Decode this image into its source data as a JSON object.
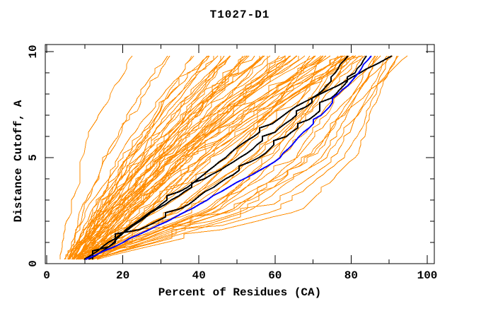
{
  "title": "T1027-D1",
  "chart_data": {
    "type": "line",
    "title": "T1027-D1",
    "xlabel": "Percent of Residues (CA)",
    "ylabel": "Distance Cutoff, A",
    "xlim": [
      0,
      102
    ],
    "ylim": [
      0,
      10.3
    ],
    "x_major_ticks": [
      0,
      20,
      40,
      60,
      80,
      100
    ],
    "x_minor_step": 10,
    "y_major_ticks": [
      0,
      5,
      10
    ],
    "y_minor_step": 1,
    "grid": false,
    "legend": null,
    "colors": {
      "orange": "#ff8c00",
      "black": "#000000",
      "blue": "#0000ff",
      "axis": "#000000",
      "background": "#ffffff"
    },
    "cutoffs": [
      0.2,
      2.5,
      5.0,
      7.5,
      9.8
    ],
    "series": [
      {
        "name": "orange-models",
        "color": "orange",
        "line_width": 1,
        "curves": [
          [
            4,
            7,
            9,
            14,
            21
          ],
          [
            5,
            10,
            15,
            22,
            30
          ],
          [
            6,
            11,
            17,
            25,
            34
          ],
          [
            5,
            12,
            19,
            28,
            37
          ],
          [
            7,
            14,
            22,
            31,
            40
          ],
          [
            6,
            13,
            21,
            30,
            42
          ],
          [
            6,
            12,
            20,
            30,
            42
          ],
          [
            8,
            15,
            24,
            33,
            43
          ],
          [
            7,
            13,
            22,
            32,
            44
          ],
          [
            9,
            17,
            26,
            35,
            45
          ],
          [
            6,
            14,
            23,
            34,
            46
          ],
          [
            10,
            18,
            28,
            37,
            47
          ],
          [
            7,
            15,
            25,
            36,
            48
          ],
          [
            8,
            16,
            27,
            38,
            49
          ],
          [
            11,
            19,
            29,
            40,
            50
          ],
          [
            6,
            13,
            24,
            37,
            51
          ],
          [
            9,
            18,
            30,
            41,
            52
          ],
          [
            7,
            16,
            28,
            40,
            53
          ],
          [
            10,
            20,
            31,
            42,
            54
          ],
          [
            8,
            17,
            29,
            42,
            55
          ],
          [
            12,
            22,
            33,
            44,
            56
          ],
          [
            6,
            15,
            27,
            41,
            57
          ],
          [
            9,
            19,
            32,
            45,
            58
          ],
          [
            7,
            17,
            30,
            44,
            59
          ],
          [
            11,
            21,
            34,
            47,
            60
          ],
          [
            8,
            18,
            31,
            46,
            61
          ],
          [
            10,
            22,
            35,
            48,
            62
          ],
          [
            6,
            16,
            29,
            45,
            63
          ],
          [
            9,
            20,
            33,
            48,
            64
          ],
          [
            12,
            24,
            37,
            51,
            65
          ],
          [
            7,
            18,
            32,
            48,
            66
          ],
          [
            10,
            23,
            36,
            51,
            67
          ],
          [
            8,
            20,
            34,
            50,
            68
          ],
          [
            11,
            25,
            39,
            54,
            69
          ],
          [
            6,
            17,
            31,
            49,
            70
          ],
          [
            9,
            22,
            36,
            53,
            71
          ],
          [
            12,
            26,
            40,
            56,
            72
          ],
          [
            7,
            19,
            33,
            52,
            73
          ],
          [
            10,
            24,
            38,
            56,
            74
          ],
          [
            8,
            21,
            36,
            55,
            75
          ],
          [
            11,
            27,
            42,
            59,
            76
          ],
          [
            6,
            18,
            33,
            53,
            77
          ],
          [
            9,
            23,
            38,
            58,
            78
          ],
          [
            12,
            28,
            44,
            62,
            79
          ],
          [
            7,
            20,
            35,
            57,
            80
          ],
          [
            10,
            25,
            41,
            61,
            81
          ],
          [
            13,
            30,
            46,
            64,
            82
          ],
          [
            8,
            22,
            38,
            60,
            83
          ],
          [
            7,
            14,
            24,
            36,
            47
          ],
          [
            10,
            19,
            30,
            43,
            54
          ],
          [
            8,
            16,
            28,
            42,
            58
          ],
          [
            11,
            23,
            36,
            50,
            63
          ],
          [
            6,
            15,
            26,
            40,
            55
          ],
          [
            9,
            21,
            34,
            49,
            66
          ],
          [
            12,
            26,
            41,
            58,
            73
          ],
          [
            7,
            17,
            29,
            44,
            60
          ],
          [
            12,
            60,
            78,
            84,
            90
          ],
          [
            11,
            55,
            74,
            82,
            88
          ],
          [
            13,
            65,
            80,
            86,
            92
          ],
          [
            10,
            50,
            70,
            80,
            94
          ],
          [
            12,
            58,
            76,
            85,
            91
          ],
          [
            11,
            45,
            68,
            78,
            86
          ],
          [
            9,
            40,
            62,
            75,
            87
          ],
          [
            10,
            48,
            72,
            83,
            93
          ],
          [
            8,
            35,
            55,
            70,
            84
          ],
          [
            11,
            38,
            58,
            72,
            85
          ],
          [
            9,
            30,
            50,
            66,
            82
          ],
          [
            12,
            42,
            64,
            76,
            89
          ],
          [
            10,
            33,
            52,
            68,
            81
          ],
          [
            8,
            28,
            46,
            62,
            78
          ],
          [
            10,
            42,
            58,
            68,
            76
          ],
          [
            12,
            46,
            62,
            71,
            79
          ],
          [
            9,
            38,
            54,
            66,
            74
          ],
          [
            11,
            50,
            66,
            75,
            83
          ],
          [
            13,
            36,
            50,
            62,
            72
          ],
          [
            10,
            44,
            60,
            70,
            78
          ],
          [
            8,
            32,
            48,
            60,
            70
          ],
          [
            12,
            52,
            68,
            77,
            85
          ]
        ]
      },
      {
        "name": "black-models",
        "color": "black",
        "line_width": 2,
        "curves": [
          [
            10,
            30,
            52,
            70,
            80
          ],
          [
            11,
            33,
            55,
            72,
            83
          ],
          [
            12,
            28,
            48,
            68,
            90
          ]
        ]
      },
      {
        "name": "blue-model",
        "color": "blue",
        "line_width": 2,
        "curves": [
          [
            10,
            36,
            60,
            73,
            86
          ]
        ]
      }
    ]
  }
}
